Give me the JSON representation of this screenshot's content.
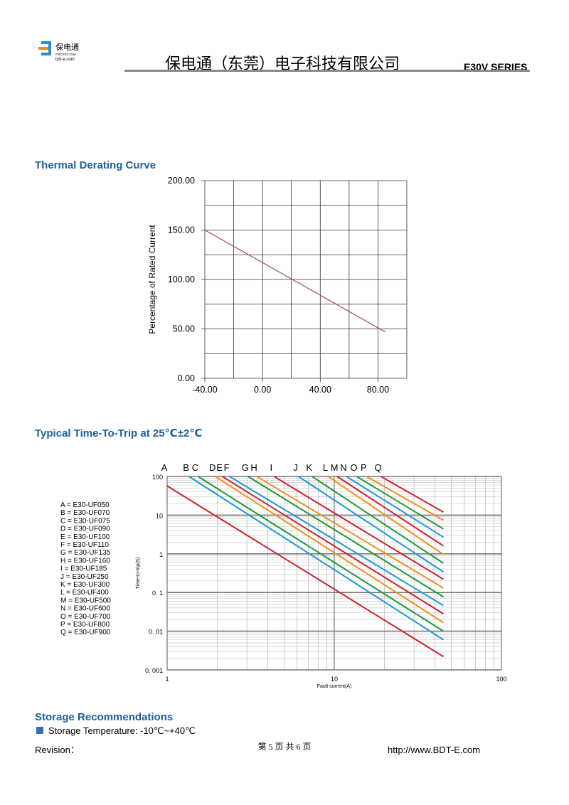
{
  "header": {
    "logo_cn": "保电通",
    "logo_en": "PROTECTOM",
    "logo_url": "bdt-e.com",
    "company": "保电通（东莞）电子科技有限公司",
    "series": "E30V SERIES"
  },
  "sections": [
    {
      "title": "Thermal Derating Curve"
    },
    {
      "title": "Typical Time-To-Trip at 25℃±2℃"
    },
    {
      "title": "Storage Recommendations",
      "items": [
        "Storage Temperature: -10℃~+40℃"
      ]
    }
  ],
  "chart_data": [
    {
      "type": "line",
      "ylabel": "Percentage of Rated Current",
      "x": [
        -40,
        85
      ],
      "values": [
        150,
        47
      ],
      "color": "#a0485a",
      "xlim": [
        -40,
        100
      ],
      "xticks": [
        {
          "value": -40,
          "label": "-40.00"
        },
        {
          "value": 0,
          "label": "0.00"
        },
        {
          "value": 40,
          "label": "40.00"
        },
        {
          "value": 80,
          "label": "80.00"
        }
      ],
      "xgrid": [
        -20,
        20,
        60,
        100
      ],
      "ylim": [
        0,
        200
      ],
      "yticks": [
        {
          "value": 0,
          "label": "0.00"
        },
        {
          "value": 50,
          "label": "50.00"
        },
        {
          "value": 100,
          "label": "100.00"
        },
        {
          "value": 150,
          "label": "150.00"
        },
        {
          "value": 200,
          "label": "200.00"
        }
      ],
      "ygrid": [
        25,
        75,
        125,
        175
      ],
      "grid": true
    },
    {
      "type": "loglog",
      "xlabel": "Fault current(A)",
      "ylabel": "Time-to-trip(S)",
      "xlim": [
        1,
        100
      ],
      "ylim": [
        0.001,
        100
      ],
      "log_x": true,
      "log_y": true,
      "minor_grid": true,
      "xticks": [
        1,
        10,
        100
      ],
      "yticks": [
        {
          "value": 0.001,
          "label": "0. 001"
        },
        {
          "value": 0.01,
          "label": "0. 01"
        },
        {
          "value": 0.1,
          "label": "0. 1"
        },
        1,
        10,
        100
      ],
      "legend_labels": [
        "A = E30-UF050",
        "B = E30-UF070",
        "C = E30-UF075",
        "D = E30-UF090",
        "E = E30-UF100",
        "F = E30-UF110",
        "G = E30-UF135",
        "H = E30-UF160",
        "I = E30-UF185",
        "J = E30-UF250",
        "K = E30-UF300",
        "L = E30-UF400",
        "M = E30-UF500",
        "N = E30-UF600",
        "O = E30-UF700",
        "P = E30-UF800",
        "Q = E30-UF900"
      ],
      "series": [
        {
          "name": "A",
          "color": "#d0202e",
          "x": [
            1,
            45
          ],
          "values": [
            57,
            0.0022
          ]
        },
        {
          "name": "B",
          "color": "#1a9ad6",
          "x": [
            1.35,
            45
          ],
          "values": [
            100,
            0.006
          ]
        },
        {
          "name": "C",
          "color": "#1c9a3a",
          "x": [
            1.53,
            45
          ],
          "values": [
            100,
            0.01
          ]
        },
        {
          "name": "D",
          "color": "#f0901c",
          "x": [
            1.94,
            45
          ],
          "values": [
            100,
            0.0167
          ]
        },
        {
          "name": "E",
          "color": "#d0202e",
          "x": [
            2.14,
            45
          ],
          "values": [
            100,
            0.028
          ]
        },
        {
          "name": "F",
          "color": "#1a9ad6",
          "x": [
            2.36,
            45
          ],
          "values": [
            100,
            0.046
          ]
        },
        {
          "name": "G",
          "color": "#1c9a3a",
          "x": [
            3.05,
            45
          ],
          "values": [
            100,
            0.077
          ]
        },
        {
          "name": "H",
          "color": "#f0901c",
          "x": [
            3.44,
            45
          ],
          "values": [
            100,
            0.13
          ]
        },
        {
          "name": "I",
          "color": "#d0202e",
          "x": [
            4.36,
            45
          ],
          "values": [
            100,
            0.22
          ]
        },
        {
          "name": "J",
          "color": "#1a9ad6",
          "x": [
            6.1,
            45
          ],
          "values": [
            100,
            0.34
          ]
        },
        {
          "name": "K",
          "color": "#1c9a3a",
          "x": [
            7.36,
            45
          ],
          "values": [
            100,
            0.57
          ]
        },
        {
          "name": "L",
          "color": "#f0901c",
          "x": [
            9.2,
            45
          ],
          "values": [
            100,
            0.96
          ]
        },
        {
          "name": "M",
          "color": "#d0202e",
          "x": [
            10.4,
            45
          ],
          "values": [
            100,
            1.6
          ]
        },
        {
          "name": "N",
          "color": "#1a9ad6",
          "x": [
            11.8,
            45
          ],
          "values": [
            100,
            2.7
          ]
        },
        {
          "name": "O",
          "color": "#1c9a3a",
          "x": [
            13.6,
            45
          ],
          "values": [
            100,
            4.4
          ]
        },
        {
          "name": "P",
          "color": "#f0901c",
          "x": [
            15.6,
            45
          ],
          "values": [
            100,
            7.4
          ]
        },
        {
          "name": "Q",
          "color": "#d0202e",
          "x": [
            19,
            45
          ],
          "values": [
            100,
            12
          ]
        }
      ]
    }
  ],
  "footer": {
    "revision": "Revision：",
    "page": "第 5 页 共 6 页",
    "url": "http://www.BDT-E.com"
  }
}
